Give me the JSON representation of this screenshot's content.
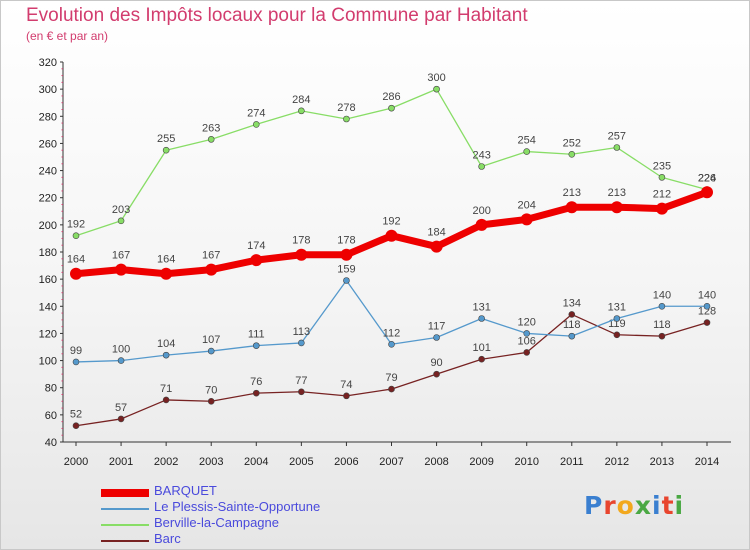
{
  "chart_data": {
    "type": "line",
    "title": "Evolution des Impôts locaux pour la Commune par Habitant",
    "subtitle": "(en € et par an)",
    "x": [
      "2000",
      "2001",
      "2002",
      "2003",
      "2004",
      "2005",
      "2006",
      "2007",
      "2008",
      "2009",
      "2010",
      "2011",
      "2012",
      "2013",
      "2014"
    ],
    "ylim": [
      40,
      320
    ],
    "yticks": [
      40,
      60,
      80,
      100,
      120,
      140,
      160,
      180,
      200,
      220,
      240,
      260,
      280,
      300,
      320
    ],
    "grid": false,
    "legend_position": "bottom-left",
    "series": [
      {
        "name": "BARQUET",
        "color": "#ee0000",
        "values": [
          164,
          167,
          164,
          167,
          174,
          178,
          178,
          192,
          184,
          200,
          204,
          213,
          213,
          212,
          224
        ]
      },
      {
        "name": "Le Plessis-Sainte-Opportune",
        "color": "#5599cc",
        "values": [
          99,
          100,
          104,
          107,
          111,
          113,
          159,
          112,
          117,
          131,
          120,
          118,
          131,
          140,
          140
        ]
      },
      {
        "name": "Berville-la-Campagne",
        "color": "#88dd66",
        "values": [
          192,
          203,
          255,
          263,
          274,
          284,
          278,
          286,
          300,
          243,
          254,
          252,
          257,
          235,
          226
        ]
      },
      {
        "name": "Barc",
        "color": "#772222",
        "values": [
          52,
          57,
          71,
          70,
          76,
          77,
          74,
          79,
          90,
          101,
          106,
          134,
          119,
          118,
          128
        ]
      }
    ]
  },
  "logo": {
    "text": "Proxiti",
    "letters": [
      "P",
      "r",
      "o",
      "x",
      "i",
      "t",
      "i"
    ],
    "colors": [
      "#3a7fd0",
      "#e8452e",
      "#f2a81d",
      "#4aa843",
      "#3a7fd0",
      "#e8452e",
      "#4aa843"
    ]
  }
}
